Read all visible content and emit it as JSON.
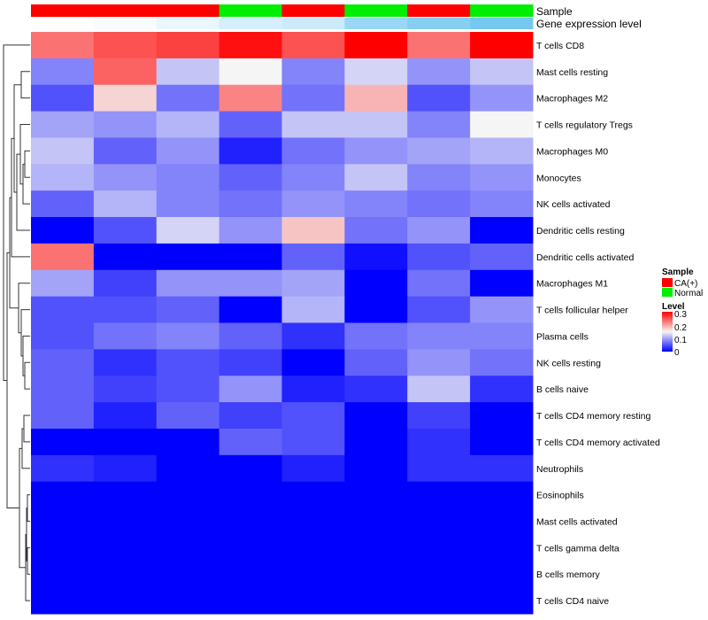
{
  "chart_data": {
    "type": "heatmap",
    "annotation_titles": {
      "sample": "Sample",
      "expression": "Gene expression level"
    },
    "columns": [
      {
        "sample": "CA(+)",
        "expression_level": 0.0
      },
      {
        "sample": "CA(+)",
        "expression_level": 0.05
      },
      {
        "sample": "CA(+)",
        "expression_level": 0.15
      },
      {
        "sample": "Normal",
        "expression_level": 0.3
      },
      {
        "sample": "CA(+)",
        "expression_level": 0.35
      },
      {
        "sample": "Normal",
        "expression_level": 0.7
      },
      {
        "sample": "CA(+)",
        "expression_level": 0.85
      },
      {
        "sample": "Normal",
        "expression_level": 0.95
      }
    ],
    "rows": [
      "T cells CD8",
      "Mast cells resting",
      "Macrophages M2",
      "T cells regulatory  Tregs",
      "Macrophages M0",
      "Monocytes",
      "NK cells activated",
      "Dendritic cells resting",
      "Dendritic cells activated",
      "Macrophages M1",
      "T cells follicular helper",
      "Plasma cells",
      "NK cells resting",
      "B cells naive",
      "T cells CD4 memory resting",
      "T cells CD4 memory activated",
      "Neutrophils",
      "Eosinophils",
      "Mast cells activated",
      "T cells gamma delta",
      "B cells memory",
      "T cells CD4 naive"
    ],
    "values": [
      [
        0.23,
        0.25,
        0.26,
        0.29,
        0.25,
        0.3,
        0.23,
        0.3
      ],
      [
        0.08,
        0.24,
        0.12,
        0.15,
        0.08,
        0.13,
        0.09,
        0.12
      ],
      [
        0.05,
        0.17,
        0.07,
        0.22,
        0.07,
        0.19,
        0.05,
        0.09
      ],
      [
        0.1,
        0.09,
        0.11,
        0.06,
        0.12,
        0.12,
        0.08,
        0.15
      ],
      [
        0.12,
        0.06,
        0.09,
        0.02,
        0.07,
        0.09,
        0.1,
        0.11
      ],
      [
        0.11,
        0.09,
        0.08,
        0.06,
        0.08,
        0.12,
        0.08,
        0.09
      ],
      [
        0.06,
        0.11,
        0.08,
        0.07,
        0.09,
        0.08,
        0.07,
        0.08
      ],
      [
        0.0,
        0.05,
        0.13,
        0.09,
        0.18,
        0.07,
        0.09,
        0.0
      ],
      [
        0.23,
        0.0,
        0.0,
        0.0,
        0.06,
        0.01,
        0.05,
        0.06
      ],
      [
        0.1,
        0.04,
        0.09,
        0.09,
        0.1,
        0.0,
        0.07,
        0.0
      ],
      [
        0.05,
        0.05,
        0.06,
        0.0,
        0.11,
        0.0,
        0.05,
        0.09
      ],
      [
        0.05,
        0.07,
        0.08,
        0.06,
        0.03,
        0.07,
        0.08,
        0.08
      ],
      [
        0.06,
        0.03,
        0.05,
        0.04,
        0.0,
        0.06,
        0.09,
        0.07
      ],
      [
        0.06,
        0.04,
        0.05,
        0.09,
        0.02,
        0.03,
        0.12,
        0.03
      ],
      [
        0.06,
        0.02,
        0.06,
        0.04,
        0.05,
        0.0,
        0.04,
        0.0
      ],
      [
        0.0,
        0.0,
        0.0,
        0.06,
        0.05,
        0.0,
        0.03,
        0.0
      ],
      [
        0.03,
        0.02,
        0.0,
        0.0,
        0.02,
        0.0,
        0.03,
        0.03
      ],
      [
        0.0,
        0.0,
        0.0,
        0.0,
        0.0,
        0.0,
        0.0,
        0.0
      ],
      [
        0.0,
        0.0,
        0.0,
        0.0,
        0.0,
        0.0,
        0.0,
        0.0
      ],
      [
        0.0,
        0.0,
        0.0,
        0.0,
        0.0,
        0.0,
        0.0,
        0.0
      ],
      [
        0.0,
        0.0,
        0.0,
        0.0,
        0.0,
        0.0,
        0.0,
        0.0
      ],
      [
        0.0,
        0.0,
        0.0,
        0.0,
        0.0,
        0.0,
        0.0,
        0.0
      ]
    ],
    "color_scale": {
      "low": "#0000ff",
      "mid": "#f5f5f5",
      "high": "#ff0000",
      "min": 0,
      "mid_value": 0.15,
      "max": 0.3
    },
    "expression_scale": {
      "low": "#ffffff",
      "high": "#6ec6f0"
    },
    "legend": {
      "sample_title": "Sample",
      "sample_entries": [
        {
          "label": "CA(+)",
          "color": "#ff0000"
        },
        {
          "label": "Normal",
          "color": "#00ee00"
        }
      ],
      "level_title": "Level",
      "level_ticks": [
        "0.3",
        "0.2",
        "0.1",
        "0"
      ],
      "placement": "right"
    },
    "dendrogram": "rows"
  }
}
